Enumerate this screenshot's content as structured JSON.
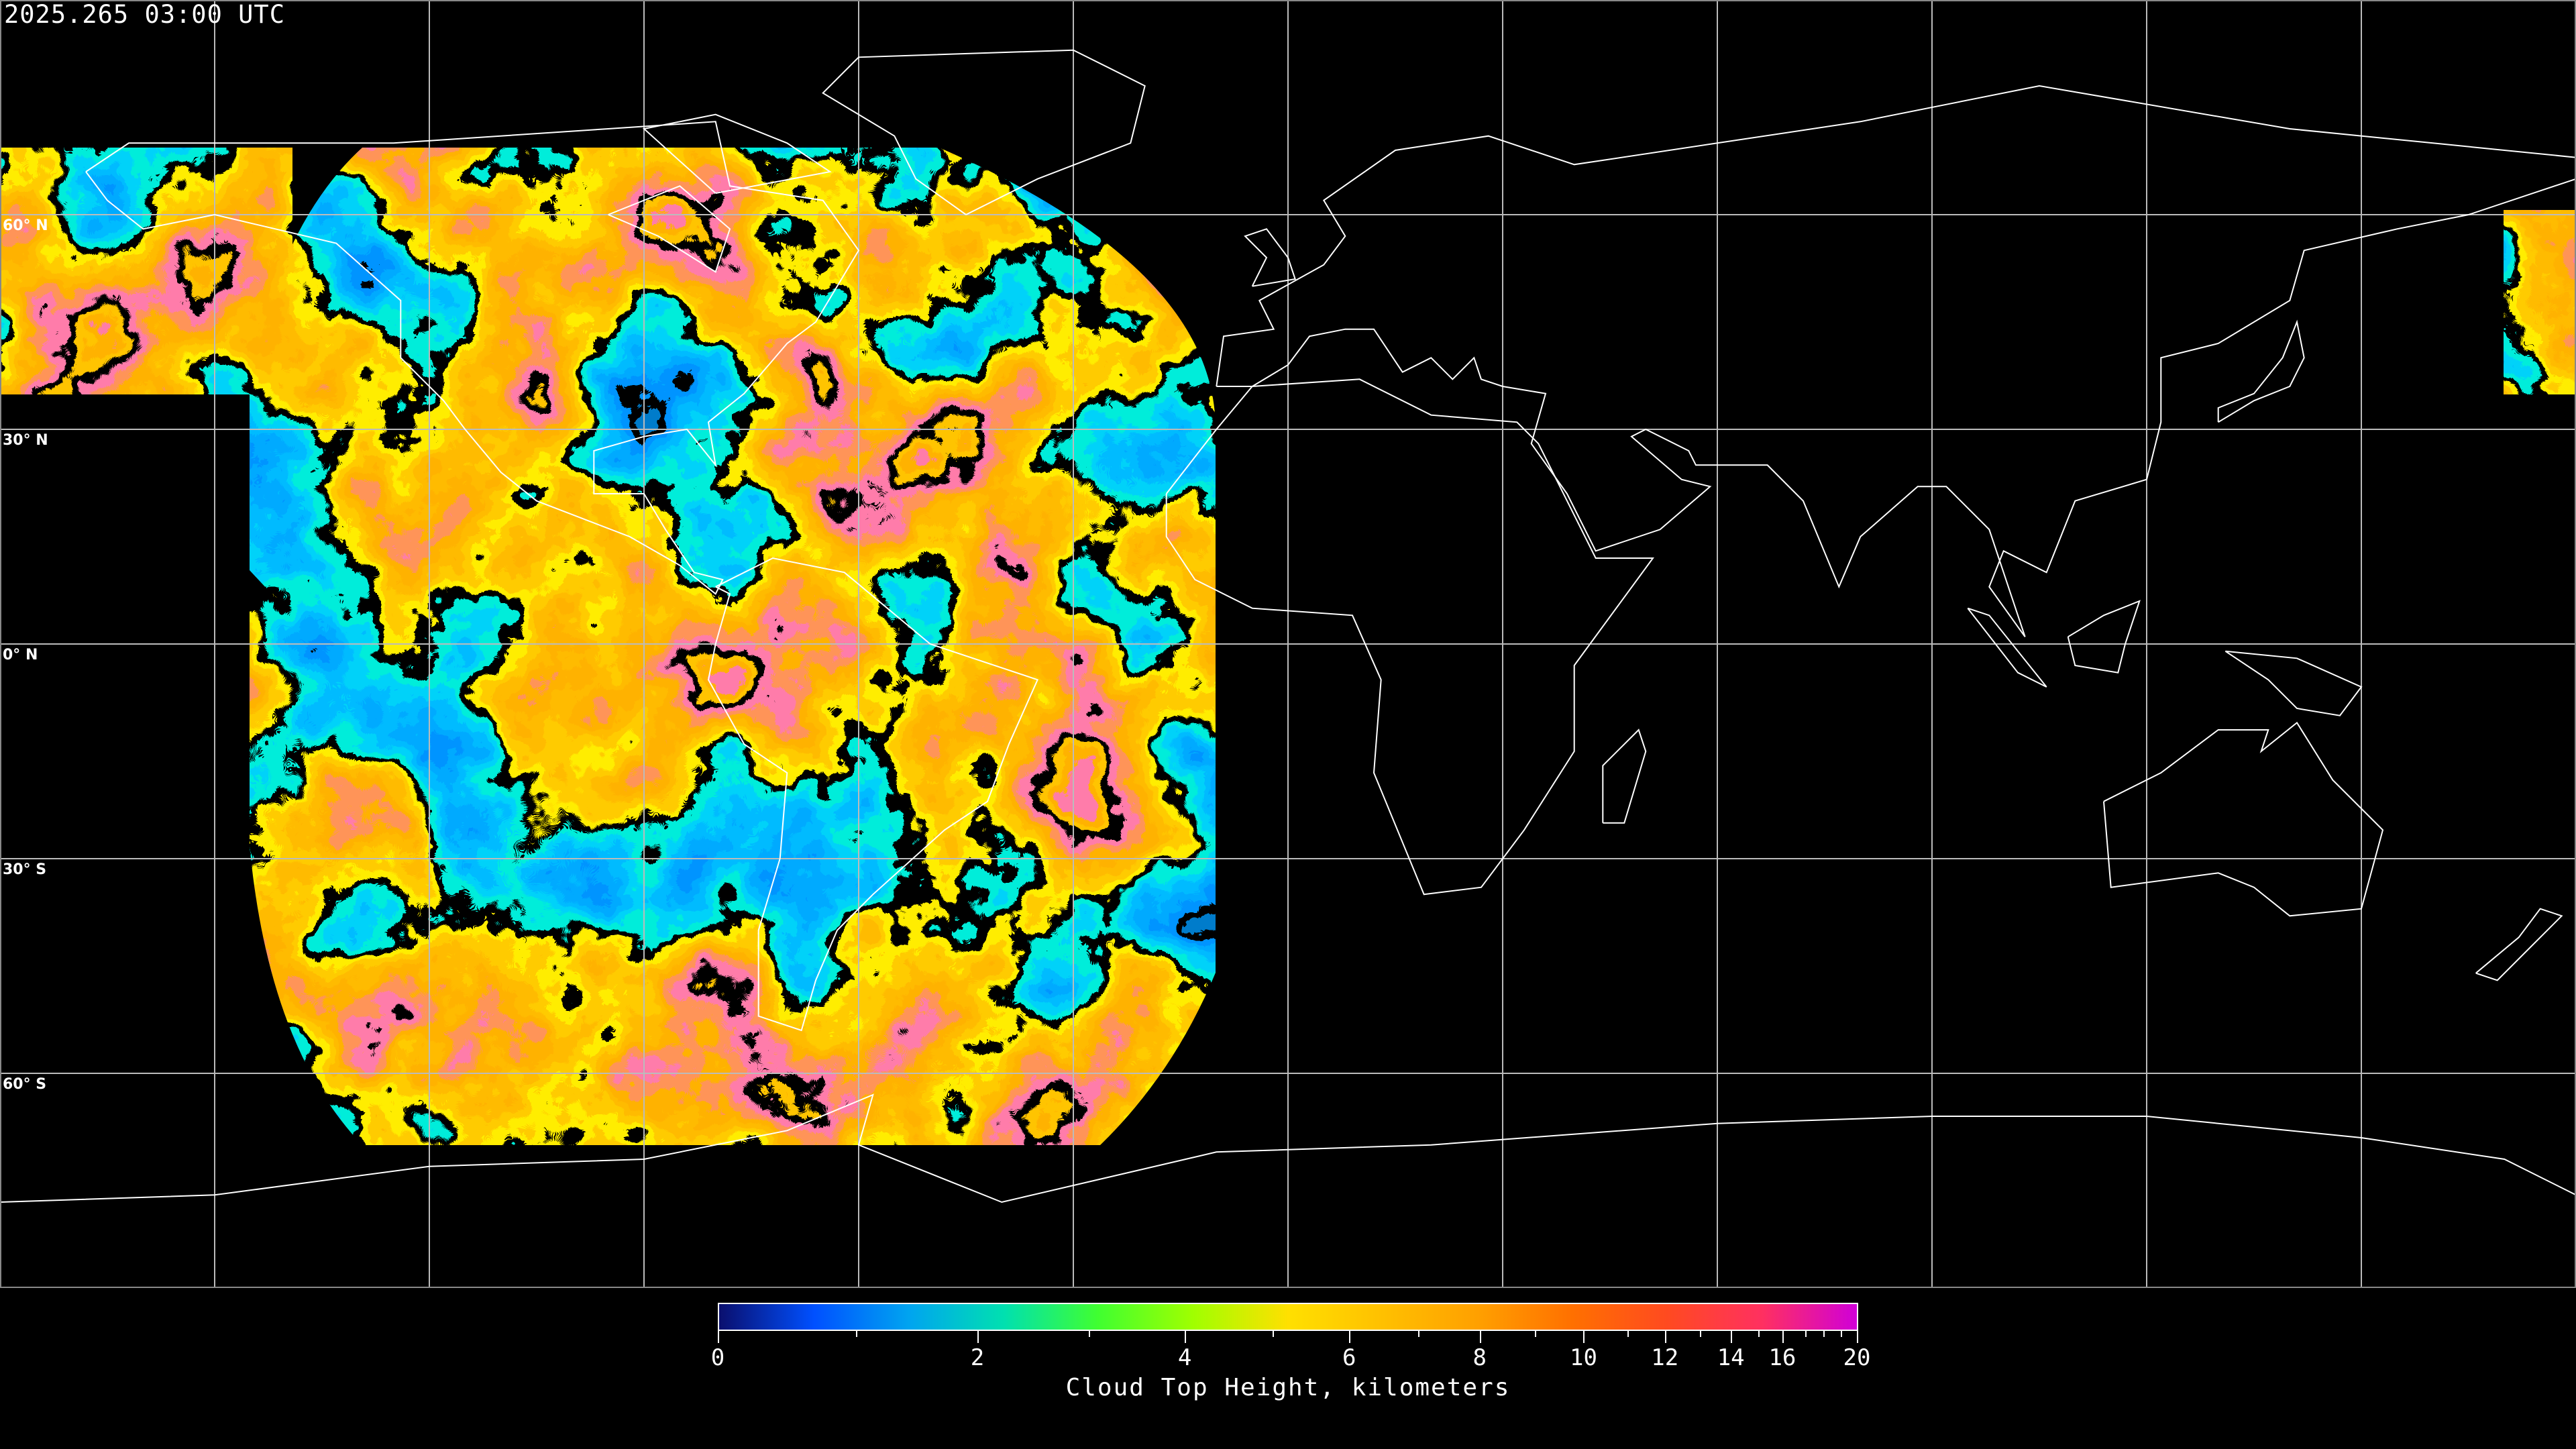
{
  "header": {
    "timestamp": "2025.265 03:00 UTC"
  },
  "map": {
    "projection": "equirectangular",
    "gridline_spacing_degrees": 30,
    "lat_labels": [
      "60° N",
      "30° N",
      "0° N",
      "30° S",
      "60° S"
    ],
    "coastline_color": "#ffffff",
    "grid_color": "#bbbbbb",
    "background_color": "#000000"
  },
  "colorbar": {
    "title": "Cloud Top Height, kilometers",
    "min": 0,
    "max": 20,
    "tick_labels": [
      "0",
      "2",
      "4",
      "6",
      "8",
      "10",
      "12",
      "14",
      "16",
      "20"
    ],
    "colors": [
      "#0a0f6e",
      "#0050ff",
      "#00a4f0",
      "#00e0b0",
      "#40ff30",
      "#a0ff00",
      "#ffe000",
      "#ffc000",
      "#ffa000",
      "#ff7000",
      "#ff4a20",
      "#ff3060",
      "#d000d8"
    ]
  }
}
